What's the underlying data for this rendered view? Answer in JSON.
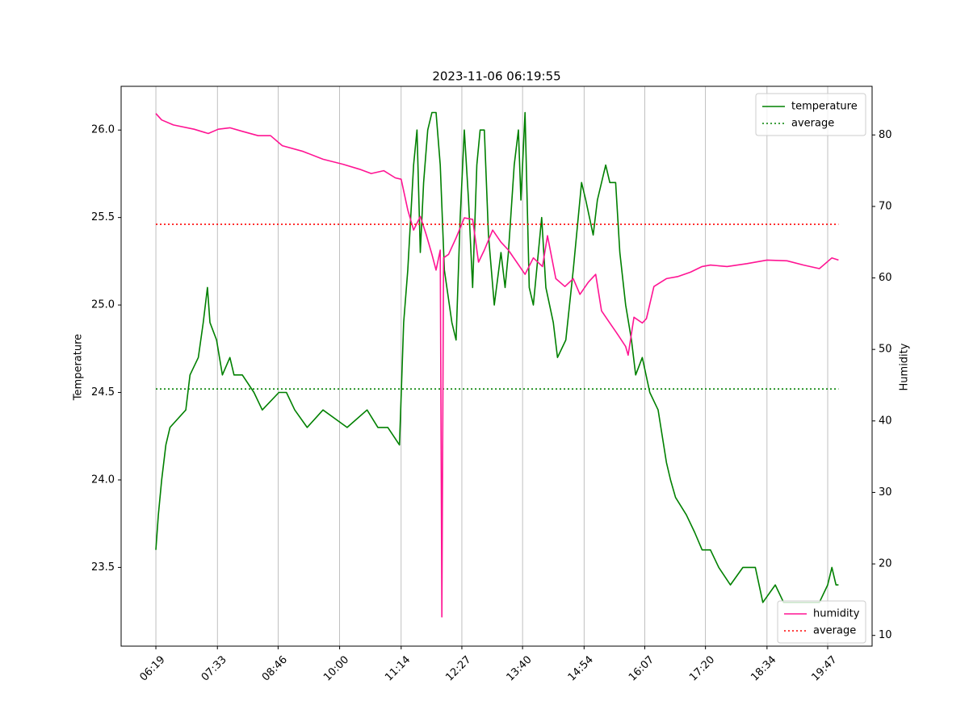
{
  "chart_data": {
    "type": "line",
    "title": "2023-11-06 06:19:55",
    "ylabel": "Temperature",
    "y2label": "Humidity",
    "xlim": [
      337.2,
      1240.4
    ],
    "xticks": [
      {
        "value": 379,
        "label": "06:19"
      },
      {
        "value": 453,
        "label": "07:33"
      },
      {
        "value": 526,
        "label": "08:46"
      },
      {
        "value": 600,
        "label": "10:00"
      },
      {
        "value": 674,
        "label": "11:14"
      },
      {
        "value": 747,
        "label": "12:27"
      },
      {
        "value": 820,
        "label": "13:40"
      },
      {
        "value": 894,
        "label": "14:54"
      },
      {
        "value": 967,
        "label": "16:07"
      },
      {
        "value": 1040,
        "label": "17:20"
      },
      {
        "value": 1114,
        "label": "18:34"
      },
      {
        "value": 1187,
        "label": "19:47"
      }
    ],
    "ylim": [
      23.05,
      26.25
    ],
    "yticks": [
      23.5,
      {
        "value": 24,
        "label": "24.0"
      },
      24.5,
      {
        "value": 25,
        "label": "25.0"
      },
      25.5,
      {
        "value": 26,
        "label": "26.0"
      }
    ],
    "y2lim": [
      8.5,
      86.8
    ],
    "y2ticks": [
      10,
      20,
      30,
      40,
      50,
      60,
      70,
      80
    ],
    "grid": "x",
    "legend": "upper right",
    "legend2": "lower right",
    "series": [
      {
        "name": "temperature",
        "color": "#008000",
        "linestyle": "solid",
        "axis": "y",
        "x": [
          379,
          382,
          386,
          391,
          396,
          415,
          420,
          430,
          436,
          441,
          444,
          452,
          459,
          468,
          473,
          483,
          497,
          507,
          527,
          536,
          546,
          561,
          580,
          609,
          633,
          646,
          658,
          672,
          677,
          682,
          689,
          693,
          697,
          701,
          706,
          711,
          716,
          721,
          726,
          735,
          740,
          745,
          750,
          755,
          760,
          765,
          769,
          774,
          779,
          786,
          794,
          799,
          803,
          810,
          815,
          818,
          823,
          828,
          833,
          843,
          848,
          857,
          862,
          872,
          881,
          891,
          896,
          905,
          910,
          920,
          925,
          932,
          937,
          944,
          951,
          956,
          964,
          973,
          983,
          993,
          998,
          1004,
          1017,
          1027,
          1036,
          1046,
          1056,
          1070,
          1085,
          1100,
          1109,
          1124,
          1134,
          1148,
          1163,
          1177,
          1187,
          1192,
          1197,
          1200
        ],
        "values": [
          23.6,
          23.8,
          24.0,
          24.2,
          24.3,
          24.4,
          24.6,
          24.7,
          24.9,
          25.1,
          24.9,
          24.8,
          24.6,
          24.7,
          24.6,
          24.6,
          24.5,
          24.4,
          24.5,
          24.5,
          24.4,
          24.3,
          24.4,
          24.3,
          24.4,
          24.3,
          24.3,
          24.2,
          24.9,
          25.2,
          25.8,
          26.0,
          25.3,
          25.7,
          26.0,
          26.1,
          26.1,
          25.8,
          25.2,
          24.9,
          24.8,
          25.5,
          26.0,
          25.6,
          25.1,
          25.8,
          26.0,
          26.0,
          25.4,
          25.0,
          25.3,
          25.1,
          25.3,
          25.8,
          26.0,
          25.6,
          26.1,
          25.1,
          25.0,
          25.5,
          25.1,
          24.9,
          24.7,
          24.8,
          25.2,
          25.7,
          25.6,
          25.4,
          25.6,
          25.8,
          25.7,
          25.7,
          25.3,
          25.0,
          24.8,
          24.6,
          24.7,
          24.5,
          24.4,
          24.1,
          24.0,
          23.9,
          23.8,
          23.7,
          23.6,
          23.6,
          23.5,
          23.4,
          23.5,
          23.5,
          23.3,
          23.4,
          23.3,
          23.3,
          23.3,
          23.3,
          23.4,
          23.5,
          23.4,
          23.4
        ]
      },
      {
        "name": "average",
        "color": "#008000",
        "linestyle": "dotted",
        "axis": "y",
        "value": 24.52
      },
      {
        "name": "humidity",
        "color": "#ff1493",
        "linestyle": "solid",
        "axis": "y2",
        "x": [
          379,
          386,
          400,
          425,
          442,
          454,
          468,
          483,
          502,
          517,
          531,
          556,
          580,
          604,
          624,
          638,
          653,
          667,
          674,
          682,
          689,
          697,
          704,
          711,
          716,
          721,
          723,
          725,
          731,
          740,
          750,
          760,
          767,
          774,
          784,
          794,
          803,
          813,
          823,
          833,
          844,
          850,
          860,
          871,
          881,
          889,
          899,
          908,
          915,
          925,
          935,
          944,
          947,
          954,
          964,
          969,
          978,
          993,
          1007,
          1022,
          1036,
          1046,
          1066,
          1090,
          1114,
          1138,
          1158,
          1177,
          1192,
          1200
        ],
        "values": [
          83.0,
          82.1,
          81.4,
          80.8,
          80.2,
          80.8,
          81.0,
          80.5,
          79.9,
          79.9,
          78.5,
          77.7,
          76.6,
          75.9,
          75.2,
          74.6,
          75.0,
          74.0,
          73.8,
          69.5,
          66.7,
          68.6,
          66.1,
          63.3,
          61.1,
          63.9,
          12.6,
          62.8,
          63.3,
          65.6,
          68.4,
          68.2,
          62.2,
          63.9,
          66.7,
          65.0,
          63.9,
          62.2,
          60.5,
          62.8,
          61.6,
          65.9,
          59.9,
          58.8,
          59.9,
          57.7,
          59.4,
          60.5,
          55.4,
          53.7,
          52.0,
          50.4,
          49.2,
          54.5,
          53.7,
          54.3,
          58.8,
          59.9,
          60.2,
          60.8,
          61.6,
          61.8,
          61.6,
          62.0,
          62.5,
          62.4,
          61.8,
          61.3,
          62.8,
          62.5
        ]
      },
      {
        "name": "average",
        "color": "red",
        "linestyle": "dotted",
        "axis": "y2",
        "value": 67.5
      }
    ]
  }
}
